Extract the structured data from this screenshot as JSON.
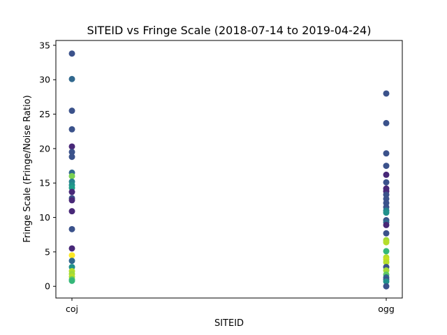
{
  "chart_data": {
    "type": "scatter",
    "title": "SITEID vs Fringe Scale (2018-07-14 to 2019-04-24)",
    "xlabel": "SITEID",
    "ylabel": "Fringe Scale (Fringe/Noise Ratio)",
    "categories": [
      "coj",
      "ogg"
    ],
    "ylim": [
      -1.7,
      35.7
    ],
    "yticks": [
      0,
      5,
      10,
      15,
      20,
      25,
      30,
      35
    ],
    "grid": false,
    "colormap": "viridis",
    "points": [
      {
        "x": "coj",
        "y": 33.8,
        "color": "#3b528b"
      },
      {
        "x": "coj",
        "y": 30.1,
        "color": "#31688e"
      },
      {
        "x": "coj",
        "y": 25.5,
        "color": "#3b528b"
      },
      {
        "x": "coj",
        "y": 22.8,
        "color": "#3b528b"
      },
      {
        "x": "coj",
        "y": 20.3,
        "color": "#482878"
      },
      {
        "x": "coj",
        "y": 19.5,
        "color": "#3b528b"
      },
      {
        "x": "coj",
        "y": 18.8,
        "color": "#3b528b"
      },
      {
        "x": "coj",
        "y": 16.5,
        "color": "#31688e"
      },
      {
        "x": "coj",
        "y": 16.0,
        "color": "#7ad151"
      },
      {
        "x": "coj",
        "y": 15.2,
        "color": "#26828e"
      },
      {
        "x": "coj",
        "y": 14.7,
        "color": "#21918c"
      },
      {
        "x": "coj",
        "y": 14.3,
        "color": "#1f9e89"
      },
      {
        "x": "coj",
        "y": 13.7,
        "color": "#482878"
      },
      {
        "x": "coj",
        "y": 12.8,
        "color": "#3b528b"
      },
      {
        "x": "coj",
        "y": 12.5,
        "color": "#482878"
      },
      {
        "x": "coj",
        "y": 10.9,
        "color": "#482878"
      },
      {
        "x": "coj",
        "y": 8.3,
        "color": "#3b528b"
      },
      {
        "x": "coj",
        "y": 5.5,
        "color": "#482878"
      },
      {
        "x": "coj",
        "y": 4.5,
        "color": "#fde725"
      },
      {
        "x": "coj",
        "y": 3.7,
        "color": "#31688e"
      },
      {
        "x": "coj",
        "y": 2.8,
        "color": "#21918c"
      },
      {
        "x": "coj",
        "y": 2.2,
        "color": "#b5de2b"
      },
      {
        "x": "coj",
        "y": 1.8,
        "color": "#a0da39"
      },
      {
        "x": "coj",
        "y": 1.4,
        "color": "#b5de2b"
      },
      {
        "x": "coj",
        "y": 1.0,
        "color": "#5ec962"
      },
      {
        "x": "coj",
        "y": 0.8,
        "color": "#35b779"
      },
      {
        "x": "ogg",
        "y": 28.0,
        "color": "#3b528b"
      },
      {
        "x": "ogg",
        "y": 23.7,
        "color": "#3b528b"
      },
      {
        "x": "ogg",
        "y": 19.3,
        "color": "#3b528b"
      },
      {
        "x": "ogg",
        "y": 17.5,
        "color": "#3b528b"
      },
      {
        "x": "ogg",
        "y": 16.2,
        "color": "#482878"
      },
      {
        "x": "ogg",
        "y": 15.1,
        "color": "#3b528b"
      },
      {
        "x": "ogg",
        "y": 14.2,
        "color": "#482878"
      },
      {
        "x": "ogg",
        "y": 13.8,
        "color": "#482878"
      },
      {
        "x": "ogg",
        "y": 13.3,
        "color": "#3b528b"
      },
      {
        "x": "ogg",
        "y": 12.7,
        "color": "#3b528b"
      },
      {
        "x": "ogg",
        "y": 12.1,
        "color": "#3b528b"
      },
      {
        "x": "ogg",
        "y": 11.5,
        "color": "#3b528b"
      },
      {
        "x": "ogg",
        "y": 11.0,
        "color": "#26828e"
      },
      {
        "x": "ogg",
        "y": 10.7,
        "color": "#21918c"
      },
      {
        "x": "ogg",
        "y": 9.6,
        "color": "#3b528b"
      },
      {
        "x": "ogg",
        "y": 9.3,
        "color": "#31688e"
      },
      {
        "x": "ogg",
        "y": 8.9,
        "color": "#482878"
      },
      {
        "x": "ogg",
        "y": 7.7,
        "color": "#3b528b"
      },
      {
        "x": "ogg",
        "y": 6.7,
        "color": "#a0da39"
      },
      {
        "x": "ogg",
        "y": 6.4,
        "color": "#b5de2b"
      },
      {
        "x": "ogg",
        "y": 5.1,
        "color": "#35b779"
      },
      {
        "x": "ogg",
        "y": 4.2,
        "color": "#b5de2b"
      },
      {
        "x": "ogg",
        "y": 3.9,
        "color": "#c8e020"
      },
      {
        "x": "ogg",
        "y": 3.5,
        "color": "#b5de2b"
      },
      {
        "x": "ogg",
        "y": 2.8,
        "color": "#3b528b"
      },
      {
        "x": "ogg",
        "y": 2.3,
        "color": "#a0da39"
      },
      {
        "x": "ogg",
        "y": 1.7,
        "color": "#5ec962"
      },
      {
        "x": "ogg",
        "y": 1.3,
        "color": "#31688e"
      },
      {
        "x": "ogg",
        "y": 1.0,
        "color": "#3b528b"
      },
      {
        "x": "ogg",
        "y": 0.7,
        "color": "#21918c"
      },
      {
        "x": "ogg",
        "y": 0.0,
        "color": "#3b528b"
      }
    ]
  }
}
